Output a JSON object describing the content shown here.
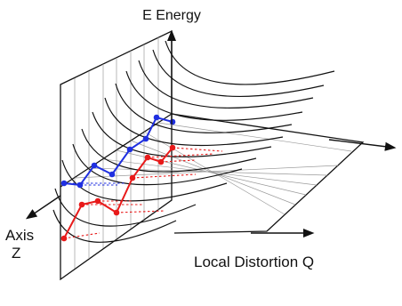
{
  "labels": {
    "energy_axis": "E Energy",
    "axis_z_line1": "Axis",
    "axis_z_line2": "Z",
    "distortion_axis": "Local Distortion Q"
  },
  "colors": {
    "lines": "#111111",
    "ground_state_chain": "#1f2fe0",
    "excited_state_chain": "#e81a1a",
    "background": "#ffffff"
  },
  "chain_node_counts": {
    "blue": 8,
    "red": 8
  }
}
